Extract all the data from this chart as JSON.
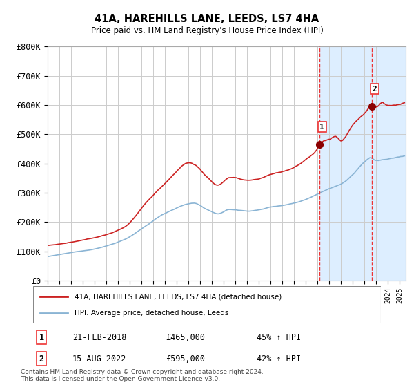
{
  "title": "41A, HAREHILLS LANE, LEEDS, LS7 4HA",
  "subtitle": "Price paid vs. HM Land Registry's House Price Index (HPI)",
  "ylim": [
    0,
    800000
  ],
  "yticks": [
    0,
    100000,
    200000,
    300000,
    400000,
    500000,
    600000,
    700000,
    800000
  ],
  "ytick_labels": [
    "£0",
    "£100K",
    "£200K",
    "£300K",
    "£400K",
    "£500K",
    "£600K",
    "£700K",
    "£800K"
  ],
  "hpi_color": "#8ab4d4",
  "price_color": "#cc2222",
  "marker_color": "#8b0000",
  "vline_color": "#ee3333",
  "shade_color": "#ddeeff",
  "grid_color": "#cccccc",
  "point1_x": 2018.13,
  "point1_y": 465000,
  "point2_x": 2022.62,
  "point2_y": 595000,
  "point1_date": "21-FEB-2018",
  "point1_price": "£465,000",
  "point1_hpi": "45% ↑ HPI",
  "point2_date": "15-AUG-2022",
  "point2_price": "£595,000",
  "point2_hpi": "42% ↑ HPI",
  "legend_label1": "41A, HAREHILLS LANE, LEEDS, LS7 4HA (detached house)",
  "legend_label2": "HPI: Average price, detached house, Leeds",
  "footnote": "Contains HM Land Registry data © Crown copyright and database right 2024.\nThis data is licensed under the Open Government Licence v3.0.",
  "xmin": 1995.0,
  "xmax": 2025.5
}
